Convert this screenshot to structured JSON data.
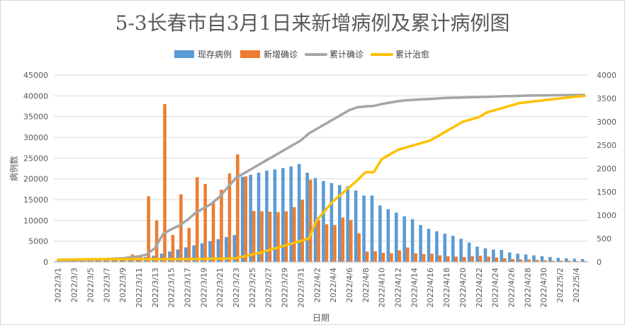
{
  "chart_data": {
    "type": "bar",
    "title": "5-3长春市自3月1日来新增病例及累计病例图",
    "xlabel": "日期",
    "ylabel": "病例数",
    "ylim": [
      0,
      45000
    ],
    "y2lim": [
      0,
      4000
    ],
    "yticks": [
      0,
      5000,
      10000,
      15000,
      20000,
      25000,
      30000,
      35000,
      40000,
      45000
    ],
    "y2ticks": [
      0,
      500,
      1000,
      1500,
      2000,
      2500,
      3000,
      3500,
      4000
    ],
    "grid": true,
    "legend_position": "top",
    "colors": {
      "现存病例": "#5b9bd5",
      "新增确诊": "#ed7d31",
      "累计确诊": "#a5a5a5",
      "累计治愈": "#ffc000"
    },
    "legend": [
      "现存病例",
      "新增确诊",
      "累计确诊",
      "累计治愈"
    ],
    "tick_labels": [
      "2022/3/1",
      "2022/3/3",
      "2022/3/5",
      "2022/3/7",
      "2022/3/9",
      "2022/3/11",
      "2022/3/13",
      "2022/3/15",
      "2022/3/17",
      "2022/3/19",
      "2022/3/21",
      "2022/3/23",
      "2022/3/25",
      "2022/3/27",
      "2022/3/29",
      "2022/3/31",
      "2022/4/2",
      "2022/4/4",
      "2022/4/6",
      "2022/4/8",
      "2022/4/10",
      "2022/4/12",
      "2022/4/14",
      "2022/4/16",
      "2022/4/18",
      "2022/4/20",
      "2022/4/22",
      "2022/4/24",
      "2022/4/26",
      "2022/4/28",
      "2022/4/30",
      "2022/5/2",
      "2022/5/4"
    ],
    "categories": [
      "2022/3/1",
      "2022/3/2",
      "2022/3/3",
      "2022/3/4",
      "2022/3/5",
      "2022/3/6",
      "2022/3/7",
      "2022/3/8",
      "2022/3/9",
      "2022/3/10",
      "2022/3/11",
      "2022/3/12",
      "2022/3/13",
      "2022/3/14",
      "2022/3/15",
      "2022/3/16",
      "2022/3/17",
      "2022/3/18",
      "2022/3/19",
      "2022/3/20",
      "2022/3/21",
      "2022/3/22",
      "2022/3/23",
      "2022/3/24",
      "2022/3/25",
      "2022/3/26",
      "2022/3/27",
      "2022/3/28",
      "2022/3/29",
      "2022/3/30",
      "2022/3/31",
      "2022/4/1",
      "2022/4/2",
      "2022/4/3",
      "2022/4/4",
      "2022/4/5",
      "2022/4/6",
      "2022/4/7",
      "2022/4/8",
      "2022/4/9",
      "2022/4/10",
      "2022/4/11",
      "2022/4/12",
      "2022/4/13",
      "2022/4/14",
      "2022/4/15",
      "2022/4/16",
      "2022/4/17",
      "2022/4/18",
      "2022/4/19",
      "2022/4/20",
      "2022/4/21",
      "2022/4/22",
      "2022/4/23",
      "2022/4/24",
      "2022/4/25",
      "2022/4/26",
      "2022/4/27",
      "2022/4/28",
      "2022/4/29",
      "2022/4/30",
      "2022/5/1",
      "2022/5/2",
      "2022/5/3",
      "2022/5/4",
      "2022/5/5"
    ],
    "series": [
      {
        "name": "现存病例",
        "axis": "left",
        "type": "bar",
        "values": [
          200,
          250,
          300,
          350,
          400,
          450,
          500,
          600,
          700,
          800,
          900,
          1200,
          1500,
          2000,
          2500,
          3000,
          3500,
          4000,
          4500,
          5000,
          5500,
          6000,
          6500,
          20500,
          21000,
          21500,
          22000,
          22300,
          22600,
          23000,
          23600,
          21500,
          20200,
          19500,
          19000,
          18500,
          18200,
          17200,
          16000,
          16000,
          13600,
          12700,
          11900,
          11000,
          10300,
          8900,
          8000,
          7400,
          6800,
          6300,
          5600,
          4700,
          3700,
          3300,
          3000,
          2900,
          2300,
          2000,
          1800,
          1600,
          1400,
          1200,
          1000,
          900,
          800,
          700
        ]
      },
      {
        "name": "新增确诊",
        "axis": "left",
        "type": "bar",
        "values": [
          150,
          200,
          220,
          250,
          300,
          350,
          400,
          500,
          600,
          1800,
          1400,
          15800,
          10000,
          38000,
          6500,
          16300,
          8200,
          20400,
          18800,
          14500,
          17400,
          21300,
          25900,
          20600,
          12300,
          12200,
          12100,
          12000,
          12200,
          13200,
          15000,
          19800,
          10100,
          9100,
          8900,
          10700,
          10100,
          6900,
          2500,
          2600,
          2200,
          2100,
          2800,
          3500,
          2100,
          1900,
          2000,
          1600,
          1400,
          1300,
          1200,
          1400,
          1500,
          1300,
          1100,
          900,
          700,
          600,
          600,
          500,
          400,
          300,
          300,
          300,
          200,
          200
        ]
      },
      {
        "name": "累计确诊",
        "axis": "right",
        "type": "line",
        "values": [
          30,
          35,
          40,
          45,
          50,
          55,
          60,
          70,
          80,
          100,
          120,
          160,
          300,
          600,
          700,
          780,
          900,
          1050,
          1150,
          1250,
          1400,
          1600,
          1800,
          1900,
          2000,
          2100,
          2200,
          2300,
          2400,
          2500,
          2600,
          2750,
          2850,
          2950,
          3050,
          3150,
          3250,
          3310,
          3330,
          3340,
          3380,
          3410,
          3440,
          3460,
          3470,
          3480,
          3490,
          3500,
          3510,
          3515,
          3520,
          3525,
          3530,
          3535,
          3540,
          3545,
          3550,
          3555,
          3560,
          3563,
          3565,
          3568,
          3570,
          3572,
          3574,
          3575
        ]
      },
      {
        "name": "累计治愈",
        "axis": "right",
        "type": "line",
        "values": [
          50,
          50,
          55,
          55,
          60,
          60,
          60,
          60,
          60,
          60,
          60,
          60,
          60,
          60,
          60,
          60,
          60,
          65,
          65,
          70,
          70,
          75,
          80,
          120,
          160,
          200,
          250,
          300,
          350,
          400,
          450,
          500,
          900,
          1100,
          1300,
          1450,
          1600,
          1750,
          1920,
          1920,
          2200,
          2300,
          2400,
          2450,
          2500,
          2550,
          2600,
          2700,
          2800,
          2900,
          3000,
          3050,
          3100,
          3200,
          3250,
          3300,
          3350,
          3400,
          3420,
          3440,
          3460,
          3480,
          3500,
          3520,
          3540,
          3550
        ]
      }
    ]
  }
}
